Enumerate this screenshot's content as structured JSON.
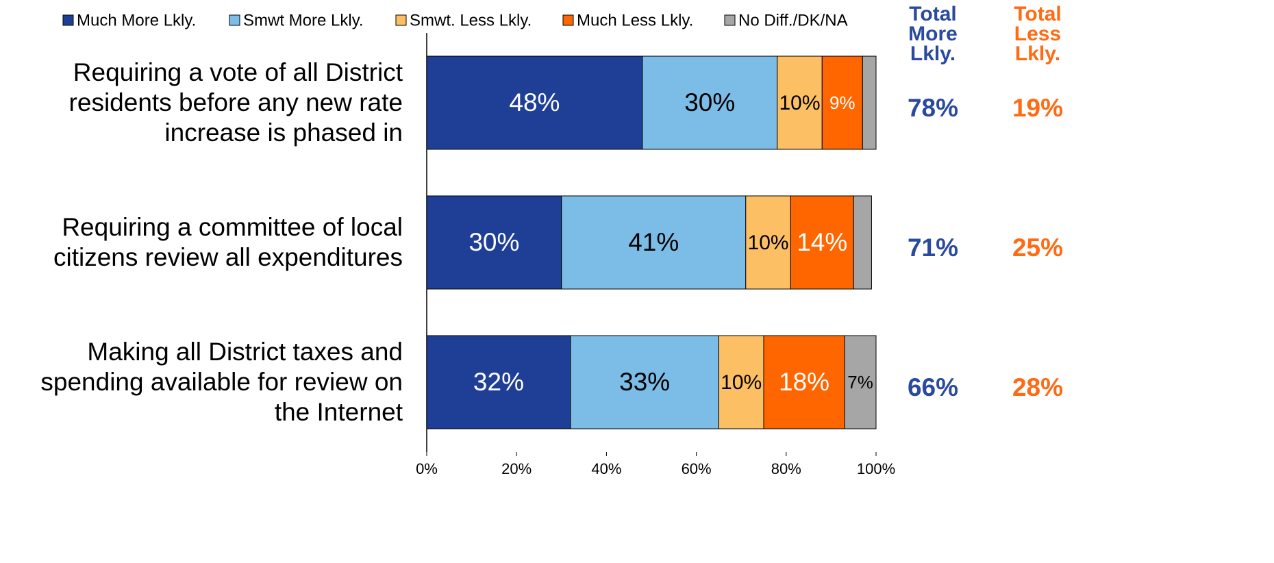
{
  "chart_data": {
    "type": "stacked_bar_horizontal",
    "categories": [
      "Requiring a vote of all District residents before any new rate increase is phased in",
      "Requiring a committee of local citizens review all expenditures",
      "Making all District taxes and spending available for review on the Internet"
    ],
    "series": [
      {
        "name": "Much More Lkly.",
        "color": "#1f3f97",
        "label_color": "#ffffff",
        "values": [
          48,
          30,
          32
        ],
        "value_labels": [
          "48%",
          "30%",
          "32%"
        ]
      },
      {
        "name": "Smwt More Lkly.",
        "color": "#7cbde8",
        "label_color": "#000000",
        "values": [
          30,
          41,
          33
        ],
        "value_labels": [
          "30%",
          "41%",
          "33%"
        ]
      },
      {
        "name": "Smwt. Less Lkly.",
        "color": "#fdbf63",
        "label_color": "#000000",
        "values": [
          10,
          10,
          10
        ],
        "value_labels": [
          "10%",
          "10%",
          "10%"
        ]
      },
      {
        "name": "Much Less Lkly.",
        "color": "#ff6600",
        "label_color": "#ffffff",
        "values": [
          9,
          14,
          18
        ],
        "value_labels": [
          "9%",
          "14%",
          "18%"
        ]
      },
      {
        "name": "No Diff./DK/NA",
        "color": "#a6a6a6",
        "label_color": "#000000",
        "values": [
          3,
          4,
          7
        ],
        "value_labels": [
          null,
          null,
          "7%"
        ]
      }
    ],
    "totals": [
      {
        "name": "Total More Lkly.",
        "color": "#2a4aa0",
        "values": [
          78,
          71,
          66
        ],
        "value_labels": [
          "78%",
          "71%",
          "66%"
        ]
      },
      {
        "name": "Total Less Lkly.",
        "color": "#ff6a13",
        "values": [
          19,
          25,
          28
        ],
        "value_labels": [
          "19%",
          "25%",
          "28%"
        ]
      }
    ],
    "xlim": [
      0,
      100
    ],
    "xticks": [
      {
        "value": 0,
        "label": "0%"
      },
      {
        "value": 20,
        "label": "20%"
      },
      {
        "value": 40,
        "label": "40%"
      },
      {
        "value": 60,
        "label": "60%"
      },
      {
        "value": 80,
        "label": "80%"
      },
      {
        "value": 100,
        "label": "100%"
      }
    ],
    "legend": "top"
  }
}
